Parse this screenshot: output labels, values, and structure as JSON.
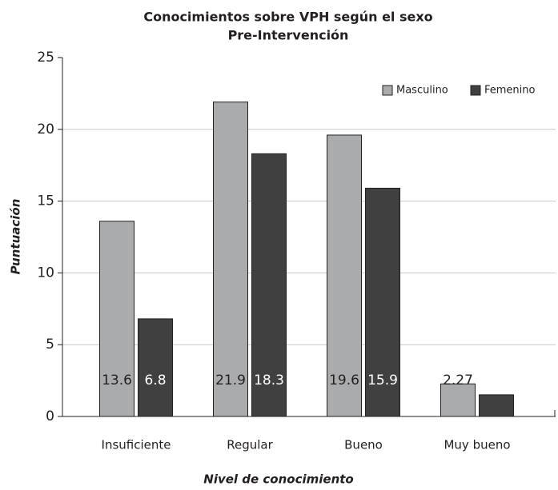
{
  "chart_data": {
    "type": "bar",
    "title": "Conocimientos sobre VPH según el sexo",
    "subtitle": "Pre-Intervención",
    "x_label": "Nivel de conocimiento",
    "y_label": "Puntuación",
    "categories": [
      "Insuficiente",
      "Regular",
      "Bueno",
      "Muy bueno"
    ],
    "series": [
      {
        "name": "Masculino",
        "color": "#aaabad",
        "values": [
          13.6,
          21.9,
          19.6,
          2.27
        ],
        "label_color": "#231f20"
      },
      {
        "name": "Femenino",
        "color": "#404041",
        "values": [
          6.8,
          18.3,
          15.9,
          1.51
        ],
        "label_color": "#ffffff"
      }
    ],
    "ylim": [
      0,
      25
    ],
    "yticks": [
      0,
      5,
      10,
      15,
      20,
      25
    ],
    "grid": true,
    "legend": "upper right"
  }
}
